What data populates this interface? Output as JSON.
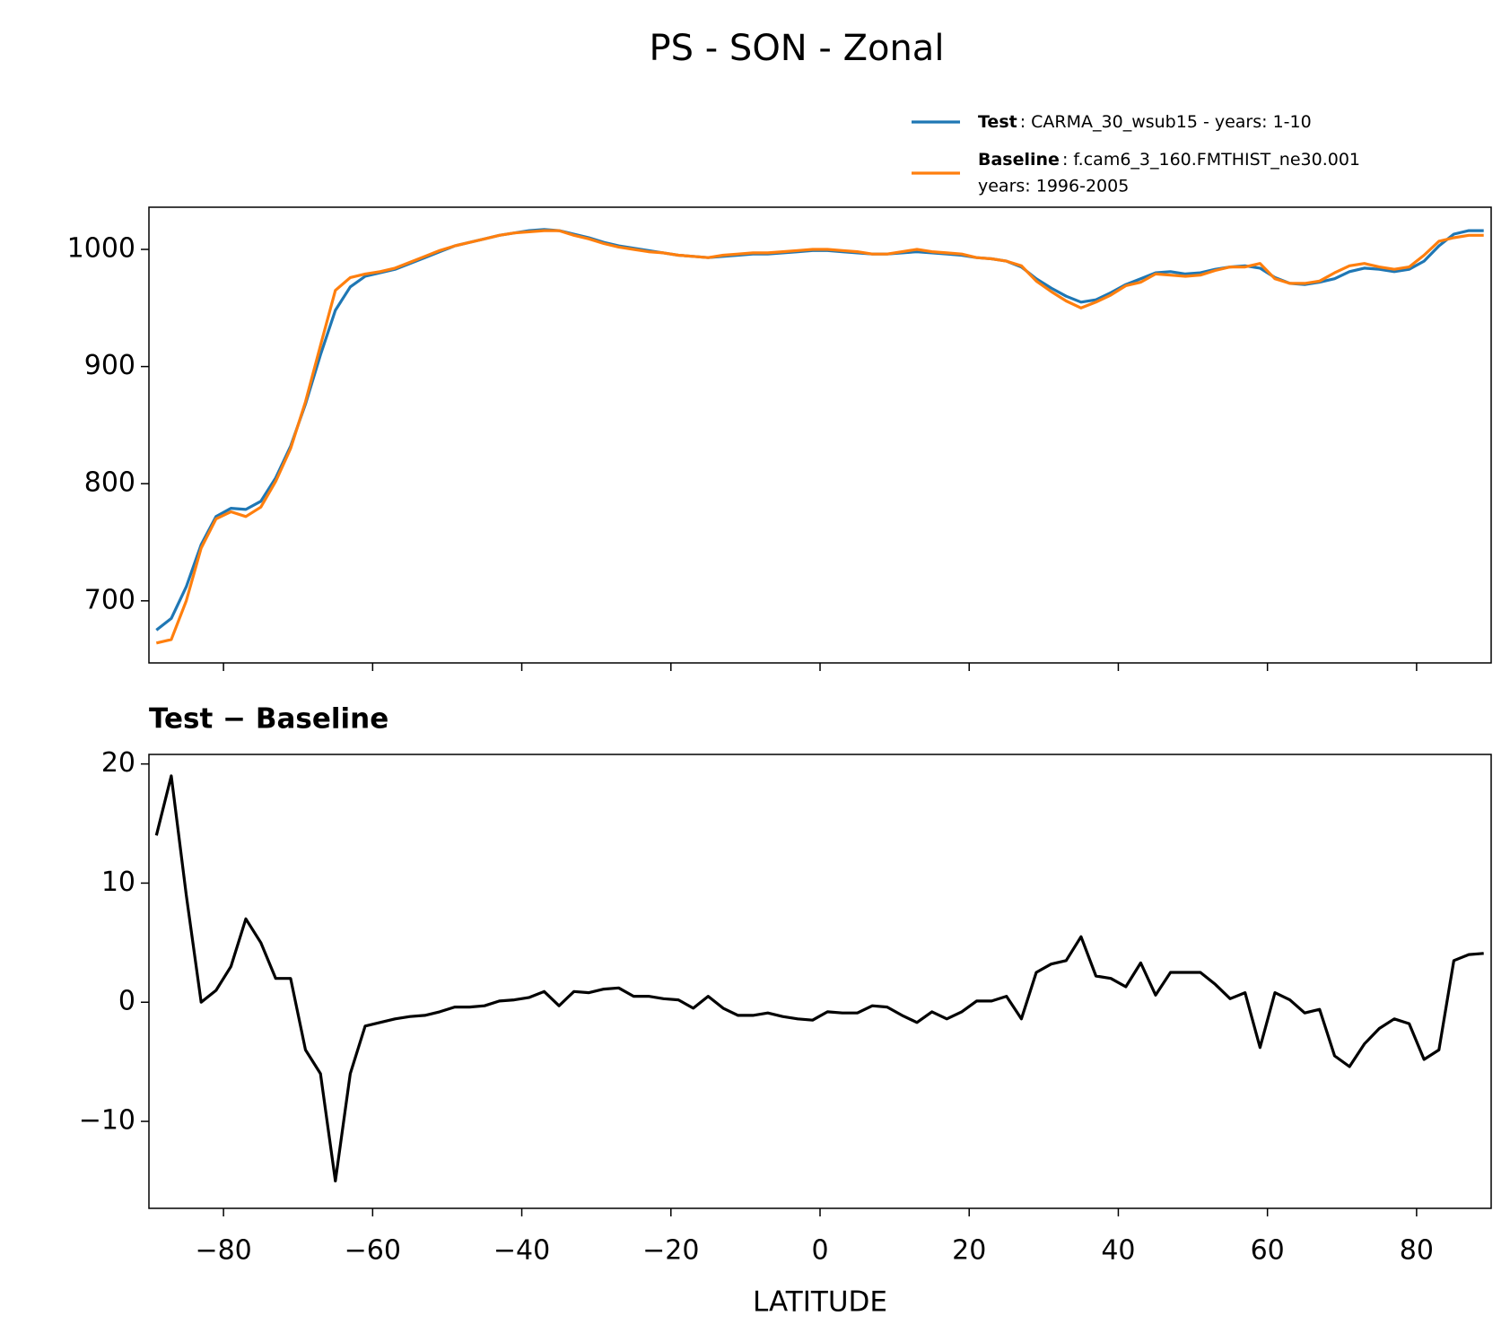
{
  "chart_data": [
    {
      "type": "line",
      "title": "PS - SON - Zonal",
      "x": [
        -89,
        -87,
        -85,
        -83,
        -81,
        -79,
        -77,
        -75,
        -73,
        -71,
        -69,
        -67,
        -65,
        -63,
        -61,
        -59,
        -57,
        -55,
        -53,
        -51,
        -49,
        -47,
        -45,
        -43,
        -41,
        -39,
        -37,
        -35,
        -33,
        -31,
        -29,
        -27,
        -25,
        -23,
        -21,
        -19,
        -17,
        -15,
        -13,
        -11,
        -9,
        -7,
        -5,
        -3,
        -1,
        1,
        3,
        5,
        7,
        9,
        11,
        13,
        15,
        17,
        19,
        21,
        23,
        25,
        27,
        29,
        31,
        33,
        35,
        37,
        39,
        41,
        43,
        45,
        47,
        49,
        51,
        53,
        55,
        57,
        59,
        61,
        63,
        65,
        67,
        69,
        71,
        73,
        75,
        77,
        79,
        81,
        83,
        85,
        87,
        89
      ],
      "series": [
        {
          "name": "Test",
          "description": [
            ": CARMA_30_wsub15 - years: 1-10"
          ],
          "color": "#1f77b4",
          "values": [
            675,
            685,
            712,
            748,
            772,
            779,
            778,
            785,
            805,
            832,
            868,
            910,
            948,
            968,
            977,
            980,
            983,
            988,
            993,
            998,
            1003,
            1006,
            1009,
            1012,
            1014,
            1016,
            1017,
            1016,
            1013,
            1010,
            1006,
            1003,
            1001,
            999,
            997,
            995,
            994,
            993,
            994,
            995,
            996,
            996,
            997,
            998,
            999,
            999,
            998,
            997,
            996,
            996,
            997,
            998,
            997,
            996,
            995,
            993,
            992,
            990,
            985,
            975,
            967,
            960,
            955,
            957,
            963,
            970,
            975,
            980,
            981,
            979,
            980,
            983,
            985,
            986,
            984,
            976,
            971,
            970,
            972,
            975,
            981,
            984,
            983,
            981,
            983,
            990,
            1003,
            1013,
            1016,
            1016
          ]
        },
        {
          "name": "Baseline",
          "description": [
            ": f.cam6_3_160.FMTHIST_ne30.001",
            "years: 1996-2005"
          ],
          "color": "#ff7f0e",
          "values": [
            664,
            667,
            700,
            745,
            770,
            776,
            772,
            780,
            802,
            830,
            870,
            918,
            965,
            976,
            979,
            981,
            984,
            989,
            994,
            999,
            1003,
            1006,
            1009,
            1012,
            1014,
            1015,
            1016,
            1016,
            1012,
            1009,
            1005,
            1002,
            1000,
            998,
            997,
            995,
            994,
            993,
            995,
            996,
            997,
            997,
            998,
            999,
            1000,
            1000,
            999,
            998,
            996,
            996,
            998,
            1000,
            998,
            997,
            996,
            993,
            992,
            990,
            986,
            973,
            964,
            956,
            950,
            955,
            961,
            969,
            972,
            979,
            978,
            977,
            978,
            982,
            985,
            985,
            988,
            975,
            971,
            971,
            973,
            980,
            986,
            988,
            985,
            983,
            985,
            995,
            1007,
            1010,
            1012,
            1012
          ]
        }
      ],
      "xlim": [
        -90,
        90
      ],
      "xticks": [
        -80,
        -60,
        -40,
        -20,
        0,
        20,
        40,
        60,
        80
      ],
      "xtick_labels": false,
      "ylim": [
        647,
        1036
      ],
      "yticks": [
        700,
        800,
        900,
        1000
      ]
    },
    {
      "type": "line",
      "title": "Test − Baseline",
      "xlabel": "LATITUDE",
      "x": [
        -89,
        -87,
        -85,
        -83,
        -81,
        -79,
        -77,
        -75,
        -73,
        -71,
        -69,
        -67,
        -65,
        -63,
        -61,
        -59,
        -57,
        -55,
        -53,
        -51,
        -49,
        -47,
        -45,
        -43,
        -41,
        -39,
        -37,
        -35,
        -33,
        -31,
        -29,
        -27,
        -25,
        -23,
        -21,
        -19,
        -17,
        -15,
        -13,
        -11,
        -9,
        -7,
        -5,
        -3,
        -1,
        1,
        3,
        5,
        7,
        9,
        11,
        13,
        15,
        17,
        19,
        21,
        23,
        25,
        27,
        29,
        31,
        33,
        35,
        37,
        39,
        41,
        43,
        45,
        47,
        49,
        51,
        53,
        55,
        57,
        59,
        61,
        63,
        65,
        67,
        69,
        71,
        73,
        75,
        77,
        79,
        81,
        83,
        85,
        87,
        89
      ],
      "series": [
        {
          "color": "#000000",
          "values": [
            14,
            19,
            9,
            0,
            1,
            3,
            7,
            5,
            2,
            2,
            -4,
            -6,
            -15,
            -6,
            -2,
            -1.7,
            -1.4,
            -1.2,
            -1.1,
            -0.8,
            -0.4,
            -0.4,
            -0.3,
            0.1,
            0.2,
            0.4,
            0.9,
            -0.3,
            0.9,
            0.8,
            1.1,
            1.2,
            0.5,
            0.5,
            0.3,
            0.2,
            -0.5,
            0.5,
            -0.5,
            -1.1,
            -1.1,
            -0.9,
            -1.2,
            -1.4,
            -1.5,
            -0.8,
            -0.9,
            -0.9,
            -0.3,
            -0.4,
            -1.1,
            -1.7,
            -0.8,
            -1.4,
            -0.8,
            0.1,
            0.1,
            0.5,
            -1.4,
            2.5,
            3.2,
            3.5,
            5.5,
            2.2,
            2,
            1.3,
            3.3,
            0.6,
            2.5,
            2.5,
            2.5,
            1.5,
            0.3,
            0.8,
            -3.8,
            0.8,
            0.2,
            -0.9,
            -0.6,
            -4.5,
            -5.4,
            -3.5,
            -2.2,
            -1.4,
            -1.8,
            -4.8,
            -4,
            3.5,
            4,
            4.1
          ]
        }
      ],
      "xlim": [
        -90,
        90
      ],
      "xticks": [
        {
          "value": -80,
          "label": "−80"
        },
        {
          "value": -60,
          "label": "−60"
        },
        {
          "value": -40,
          "label": "−40"
        },
        {
          "value": -20,
          "label": "−20"
        },
        0,
        20,
        40,
        60,
        80
      ],
      "xtick_labels": true,
      "ylim": [
        -17.3,
        20.8
      ],
      "yticks": [
        {
          "value": -10,
          "label": "−10"
        },
        0,
        10,
        20
      ]
    }
  ]
}
